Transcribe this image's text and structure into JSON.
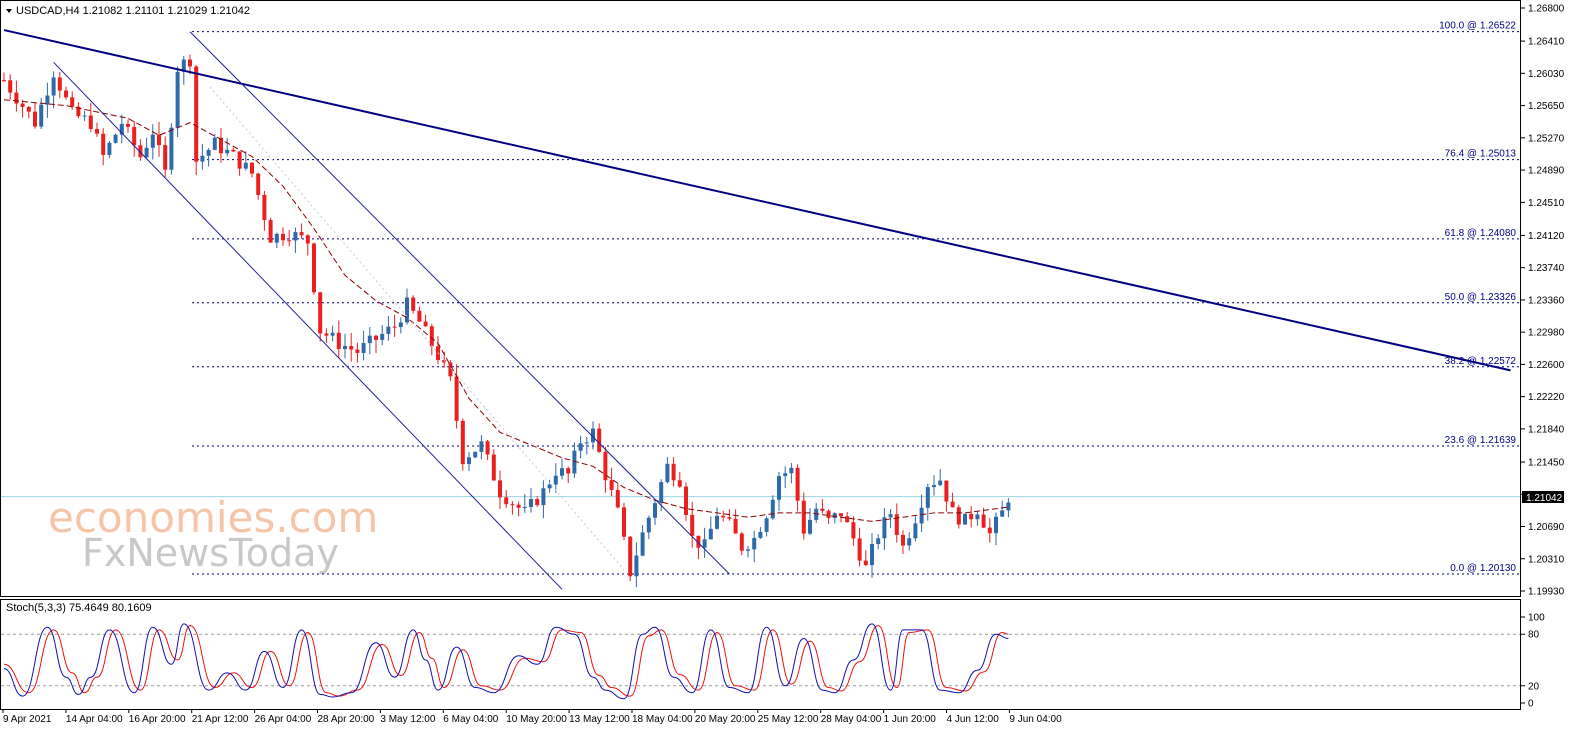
{
  "header": {
    "symbol_line": "USDCAD,H4  1.21082 1.21101 1.21029 1.21042",
    "stoch_line": "Stoch(5,3,3) 75.4649 80.1609"
  },
  "watermark": {
    "line1": "economies.com",
    "line2": "FxNewsToday"
  },
  "colors": {
    "bull": "#2f6aa8",
    "bear": "#ea2020",
    "trend": "#000080",
    "channel": "#20209a",
    "fib": "#000080",
    "ma": "#8b0000",
    "stoch_main": "#1010b0",
    "stoch_signal": "#ee1010",
    "price_line": "#9ad6e6"
  },
  "chart_data": [
    {
      "type": "candlestick",
      "title": "USDCAD,H4",
      "ohlc_latest": {
        "open": 1.21082,
        "high": 1.21101,
        "low": 1.21029,
        "close": 1.21042
      },
      "current_price_label": "1.21042",
      "x_tick_labels": [
        "9 Apr 2021",
        "14 Apr 04:00",
        "16 Apr 20:00",
        "21 Apr 12:00",
        "26 Apr 04:00",
        "28 Apr 20:00",
        "3 May 12:00",
        "6 May 04:00",
        "10 May 20:00",
        "13 May 12:00",
        "18 May 04:00",
        "20 May 20:00",
        "25 May 12:00",
        "28 May 04:00",
        "1 Jun 20:00",
        "4 Jun 12:00",
        "9 Jun 04:00"
      ],
      "y_tick_labels": [
        "1.26800",
        "1.26410",
        "1.26030",
        "1.25650",
        "1.25270",
        "1.24890",
        "1.24510",
        "1.24120",
        "1.23740",
        "1.23360",
        "1.22980",
        "1.22600",
        "1.22220",
        "1.21840",
        "1.21450",
        "1.21070",
        "1.20690",
        "1.20310",
        "1.19930"
      ],
      "ylim": [
        1.1993,
        1.268
      ],
      "fib_levels": [
        {
          "label": "100.0 @ 1.26522",
          "value": 1.26522
        },
        {
          "label": "76.4 @ 1.25013",
          "value": 1.25013
        },
        {
          "label": "61.8 @ 1.24080",
          "value": 1.2408
        },
        {
          "label": "50.0 @ 1.23326",
          "value": 1.23326
        },
        {
          "label": "38.2 @ 1.22572",
          "value": 1.22572
        },
        {
          "label": "23.6 @ 1.21639",
          "value": 1.21639
        },
        {
          "label": "0.0 @ 1.20130",
          "value": 1.2013
        }
      ],
      "trendline": {
        "from": {
          "bar": 0,
          "price": 1.2654
        },
        "to": {
          "bar": 243,
          "price": 1.2253
        }
      },
      "channel": {
        "upper": {
          "from": {
            "bar": 30,
            "price": 1.2652
          },
          "to": {
            "bar": 117,
            "price": 1.2013
          }
        },
        "lower": {
          "from": {
            "bar": 8,
            "price": 1.2616
          },
          "to": {
            "bar": 90,
            "price": 1.1995
          }
        }
      },
      "waypoints": [
        [
          0,
          1.2595
        ],
        [
          5,
          1.2545
        ],
        [
          8,
          1.2605
        ],
        [
          11,
          1.2555
        ],
        [
          14,
          1.2545
        ],
        [
          16,
          1.2505
        ],
        [
          19,
          1.2545
        ],
        [
          22,
          1.2505
        ],
        [
          24,
          1.2535
        ],
        [
          26,
          1.2485
        ],
        [
          28,
          1.261
        ],
        [
          30,
          1.262
        ],
        [
          31,
          1.25
        ],
        [
          34,
          1.252
        ],
        [
          37,
          1.2505
        ],
        [
          40,
          1.2485
        ],
        [
          43,
          1.241
        ],
        [
          46,
          1.2415
        ],
        [
          49,
          1.2405
        ],
        [
          51,
          1.23
        ],
        [
          54,
          1.2285
        ],
        [
          57,
          1.2275
        ],
        [
          60,
          1.229
        ],
        [
          63,
          1.2305
        ],
        [
          65,
          1.233
        ],
        [
          67,
          1.231
        ],
        [
          70,
          1.227
        ],
        [
          72,
          1.224
        ],
        [
          74,
          1.215
        ],
        [
          77,
          1.2165
        ],
        [
          80,
          1.211
        ],
        [
          84,
          1.2085
        ],
        [
          87,
          1.211
        ],
        [
          89,
          1.2135
        ],
        [
          91,
          1.213
        ],
        [
          93,
          1.217
        ],
        [
          95,
          1.218
        ],
        [
          97,
          1.213
        ],
        [
          99,
          1.2085
        ],
        [
          101,
          1.2015
        ],
        [
          103,
          1.206
        ],
        [
          105,
          1.21
        ],
        [
          107,
          1.214
        ],
        [
          109,
          1.2125
        ],
        [
          111,
          1.2055
        ],
        [
          113,
          1.2045
        ],
        [
          115,
          1.2085
        ],
        [
          117,
          1.207
        ],
        [
          119,
          1.2045
        ],
        [
          121,
          1.2055
        ],
        [
          123,
          1.2085
        ],
        [
          125,
          1.213
        ],
        [
          127,
          1.2135
        ],
        [
          129,
          1.2065
        ],
        [
          131,
          1.209
        ],
        [
          133,
          1.2075
        ],
        [
          135,
          1.2085
        ],
        [
          137,
          1.2055
        ],
        [
          139,
          1.202
        ],
        [
          141,
          1.206
        ],
        [
          143,
          1.2085
        ],
        [
          145,
          1.2045
        ],
        [
          147,
          1.208
        ],
        [
          149,
          1.212
        ],
        [
          151,
          1.2125
        ],
        [
          153,
          1.2085
        ],
        [
          155,
          1.2075
        ],
        [
          157,
          1.209
        ],
        [
          159,
          1.206
        ],
        [
          161,
          1.2085
        ],
        [
          162,
          1.2104
        ]
      ],
      "ma_points": [
        [
          0,
          1.2572
        ],
        [
          10,
          1.2565
        ],
        [
          20,
          1.255
        ],
        [
          25,
          1.253
        ],
        [
          30,
          1.2545
        ],
        [
          35,
          1.2525
        ],
        [
          40,
          1.2505
        ],
        [
          45,
          1.247
        ],
        [
          50,
          1.242
        ],
        [
          55,
          1.2365
        ],
        [
          60,
          1.2335
        ],
        [
          65,
          1.2315
        ],
        [
          70,
          1.2285
        ],
        [
          75,
          1.222
        ],
        [
          80,
          1.218
        ],
        [
          85,
          1.2165
        ],
        [
          90,
          1.215
        ],
        [
          95,
          1.214
        ],
        [
          100,
          1.2115
        ],
        [
          105,
          1.21
        ],
        [
          110,
          1.209
        ],
        [
          115,
          1.2085
        ],
        [
          120,
          1.208
        ],
        [
          125,
          1.2085
        ],
        [
          130,
          1.2085
        ],
        [
          135,
          1.208
        ],
        [
          140,
          1.2075
        ],
        [
          145,
          1.208
        ],
        [
          150,
          1.2085
        ],
        [
          155,
          1.2085
        ],
        [
          160,
          1.209
        ],
        [
          162,
          1.2092
        ]
      ]
    },
    {
      "type": "line",
      "title": "Stoch(5,3,3)",
      "ylim": [
        0,
        100
      ],
      "y_tick_labels": [
        "100",
        "80",
        "20",
        "0"
      ],
      "levels": [
        80,
        20
      ],
      "series": [
        {
          "name": "main",
          "latest": 75.4649,
          "anchors": [
            [
              0,
              40
            ],
            [
              3,
              8
            ],
            [
              7,
              88
            ],
            [
              10,
              30
            ],
            [
              12,
              10
            ],
            [
              14,
              30
            ],
            [
              17,
              85
            ],
            [
              21,
              12
            ],
            [
              24,
              88
            ],
            [
              27,
              45
            ],
            [
              29,
              92
            ],
            [
              33,
              15
            ],
            [
              36,
              35
            ],
            [
              39,
              15
            ],
            [
              42,
              60
            ],
            [
              45,
              18
            ],
            [
              48,
              85
            ],
            [
              51,
              10
            ],
            [
              53,
              7
            ],
            [
              56,
              12
            ],
            [
              60,
              70
            ],
            [
              63,
              30
            ],
            [
              66,
              85
            ],
            [
              68,
              50
            ],
            [
              70,
              15
            ],
            [
              73,
              65
            ],
            [
              76,
              18
            ],
            [
              79,
              12
            ],
            [
              83,
              55
            ],
            [
              86,
              45
            ],
            [
              89,
              88
            ],
            [
              92,
              80
            ],
            [
              95,
              30
            ],
            [
              97,
              15
            ],
            [
              100,
              5
            ],
            [
              103,
              80
            ],
            [
              105,
              88
            ],
            [
              108,
              30
            ],
            [
              111,
              12
            ],
            [
              114,
              85
            ],
            [
              117,
              18
            ],
            [
              120,
              12
            ],
            [
              123,
              88
            ],
            [
              126,
              20
            ],
            [
              129,
              75
            ],
            [
              132,
              15
            ],
            [
              134,
              12
            ],
            [
              137,
              50
            ],
            [
              140,
              92
            ],
            [
              143,
              15
            ],
            [
              145,
              85
            ],
            [
              148,
              85
            ],
            [
              151,
              15
            ],
            [
              154,
              12
            ],
            [
              157,
              38
            ],
            [
              160,
              80
            ],
            [
              162,
              75
            ]
          ]
        },
        {
          "name": "signal",
          "latest": 80.1609,
          "anchors": [
            [
              0,
              45
            ],
            [
              4,
              12
            ],
            [
              8,
              85
            ],
            [
              11,
              35
            ],
            [
              13,
              12
            ],
            [
              15,
              30
            ],
            [
              18,
              85
            ],
            [
              22,
              15
            ],
            [
              25,
              85
            ],
            [
              28,
              50
            ],
            [
              30,
              90
            ],
            [
              34,
              18
            ],
            [
              37,
              35
            ],
            [
              40,
              18
            ],
            [
              43,
              60
            ],
            [
              46,
              20
            ],
            [
              49,
              82
            ],
            [
              52,
              12
            ],
            [
              54,
              8
            ],
            [
              57,
              15
            ],
            [
              61,
              68
            ],
            [
              64,
              32
            ],
            [
              67,
              82
            ],
            [
              69,
              52
            ],
            [
              71,
              18
            ],
            [
              74,
              62
            ],
            [
              77,
              20
            ],
            [
              80,
              15
            ],
            [
              84,
              52
            ],
            [
              87,
              48
            ],
            [
              90,
              85
            ],
            [
              93,
              82
            ],
            [
              96,
              32
            ],
            [
              98,
              18
            ],
            [
              101,
              8
            ],
            [
              104,
              78
            ],
            [
              106,
              85
            ],
            [
              109,
              33
            ],
            [
              112,
              15
            ],
            [
              115,
              82
            ],
            [
              118,
              20
            ],
            [
              121,
              15
            ],
            [
              124,
              85
            ],
            [
              127,
              22
            ],
            [
              130,
              72
            ],
            [
              133,
              18
            ],
            [
              135,
              14
            ],
            [
              138,
              48
            ],
            [
              141,
              90
            ],
            [
              144,
              18
            ],
            [
              146,
              82
            ],
            [
              149,
              85
            ],
            [
              152,
              18
            ],
            [
              155,
              14
            ],
            [
              158,
              36
            ],
            [
              161,
              82
            ],
            [
              162,
              80
            ]
          ]
        }
      ]
    }
  ]
}
